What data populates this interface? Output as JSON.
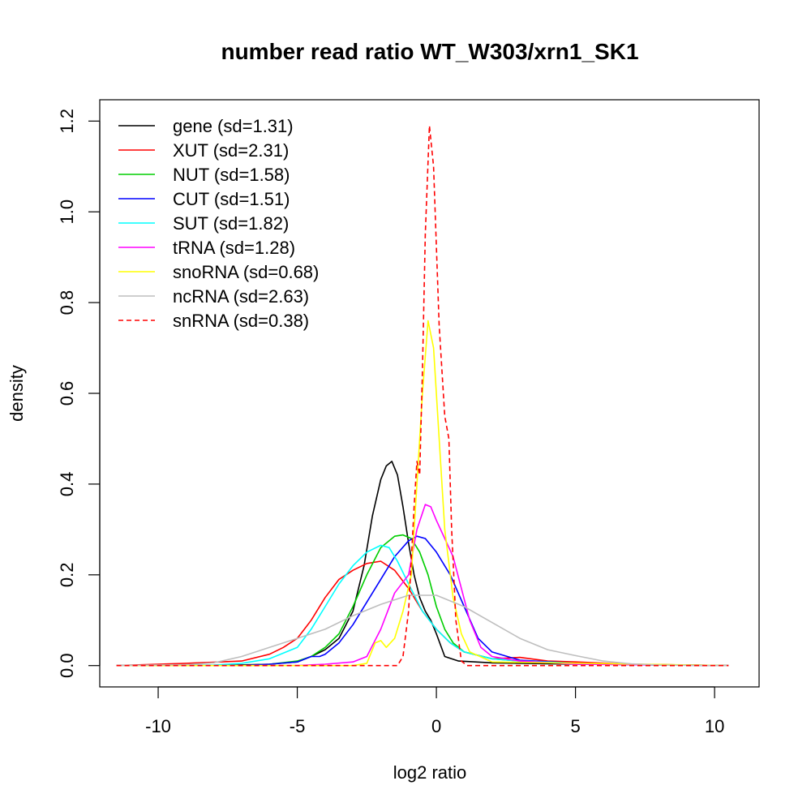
{
  "chart_data": {
    "type": "line",
    "title": "number read ratio WT_W303/xrn1_SK1",
    "xlabel": "log2 ratio",
    "ylabel": "density",
    "xlim": [
      -12.1,
      11.6
    ],
    "ylim": [
      -0.047,
      1.247
    ],
    "x_ticks": [
      -10,
      -5,
      0,
      5,
      10
    ],
    "x_tick_labels": [
      "-10",
      "-5",
      "0",
      "5",
      "10"
    ],
    "y_ticks": [
      0.0,
      0.2,
      0.4,
      0.6,
      0.8,
      1.0,
      1.2
    ],
    "y_tick_labels": [
      "0.0",
      "0.2",
      "0.4",
      "0.6",
      "0.8",
      "1.0",
      "1.2"
    ],
    "grid": false,
    "legend_position": "top-left",
    "series": [
      {
        "name": "gene (sd=1.31)",
        "color": "#000000",
        "dash": false,
        "points": [
          [
            -11.5,
            0
          ],
          [
            -8,
            0
          ],
          [
            -6,
            0.003
          ],
          [
            -5,
            0.008
          ],
          [
            -4.5,
            0.02
          ],
          [
            -4,
            0.035
          ],
          [
            -3.5,
            0.06
          ],
          [
            -3,
            0.12
          ],
          [
            -2.6,
            0.22
          ],
          [
            -2.3,
            0.33
          ],
          [
            -2,
            0.41
          ],
          [
            -1.8,
            0.44
          ],
          [
            -1.6,
            0.45
          ],
          [
            -1.4,
            0.42
          ],
          [
            -1.2,
            0.35
          ],
          [
            -1,
            0.27
          ],
          [
            -0.8,
            0.2
          ],
          [
            -0.6,
            0.15
          ],
          [
            -0.4,
            0.12
          ],
          [
            -0.2,
            0.1
          ],
          [
            0,
            0.07
          ],
          [
            0.3,
            0.02
          ],
          [
            0.8,
            0.01
          ],
          [
            2,
            0.006
          ],
          [
            5,
            0.003
          ],
          [
            8,
            0.002
          ],
          [
            10.5,
            0
          ]
        ]
      },
      {
        "name": "XUT (sd=2.31)",
        "color": "#ff0000",
        "dash": false,
        "points": [
          [
            -11.5,
            0
          ],
          [
            -9,
            0.005
          ],
          [
            -7,
            0.01
          ],
          [
            -6,
            0.025
          ],
          [
            -5.5,
            0.04
          ],
          [
            -5,
            0.06
          ],
          [
            -4.5,
            0.1
          ],
          [
            -4,
            0.15
          ],
          [
            -3.5,
            0.19
          ],
          [
            -3,
            0.21
          ],
          [
            -2.5,
            0.225
          ],
          [
            -2,
            0.23
          ],
          [
            -1.5,
            0.21
          ],
          [
            -1,
            0.17
          ],
          [
            -0.5,
            0.12
          ],
          [
            0,
            0.08
          ],
          [
            0.5,
            0.05
          ],
          [
            1,
            0.03
          ],
          [
            2,
            0.015
          ],
          [
            3,
            0.018
          ],
          [
            4,
            0.01
          ],
          [
            5,
            0.008
          ],
          [
            7,
            0.003
          ],
          [
            10.5,
            0
          ]
        ]
      },
      {
        "name": "NUT (sd=1.58)",
        "color": "#00cd00",
        "dash": false,
        "points": [
          [
            -11.5,
            0
          ],
          [
            -7,
            0
          ],
          [
            -6,
            0.003
          ],
          [
            -5,
            0.01
          ],
          [
            -4.5,
            0.02
          ],
          [
            -4,
            0.04
          ],
          [
            -3.5,
            0.07
          ],
          [
            -3,
            0.13
          ],
          [
            -2.5,
            0.2
          ],
          [
            -2,
            0.26
          ],
          [
            -1.5,
            0.285
          ],
          [
            -1.2,
            0.288
          ],
          [
            -0.9,
            0.28
          ],
          [
            -0.6,
            0.25
          ],
          [
            -0.3,
            0.2
          ],
          [
            0,
            0.13
          ],
          [
            0.3,
            0.08
          ],
          [
            0.6,
            0.05
          ],
          [
            1,
            0.03
          ],
          [
            2,
            0.015
          ],
          [
            3,
            0.01
          ],
          [
            5,
            0.005
          ],
          [
            7,
            0.002
          ],
          [
            10.5,
            0
          ]
        ]
      },
      {
        "name": "CUT (sd=1.51)",
        "color": "#0000ff",
        "dash": false,
        "points": [
          [
            -11.5,
            0
          ],
          [
            -7,
            0
          ],
          [
            -6,
            0.003
          ],
          [
            -5,
            0.008
          ],
          [
            -4.5,
            0.02
          ],
          [
            -4.2,
            0.02
          ],
          [
            -4,
            0.025
          ],
          [
            -3.5,
            0.05
          ],
          [
            -3,
            0.09
          ],
          [
            -2.5,
            0.14
          ],
          [
            -2,
            0.19
          ],
          [
            -1.5,
            0.24
          ],
          [
            -1,
            0.275
          ],
          [
            -0.7,
            0.285
          ],
          [
            -0.4,
            0.28
          ],
          [
            0,
            0.25
          ],
          [
            0.5,
            0.2
          ],
          [
            1,
            0.13
          ],
          [
            1.5,
            0.06
          ],
          [
            2,
            0.03
          ],
          [
            3,
            0.012
          ],
          [
            5,
            0.005
          ],
          [
            7,
            0.002
          ],
          [
            10.5,
            0
          ]
        ]
      },
      {
        "name": "SUT (sd=1.82)",
        "color": "#00ffff",
        "dash": false,
        "points": [
          [
            -11.5,
            0
          ],
          [
            -8,
            0.001
          ],
          [
            -7,
            0.005
          ],
          [
            -6,
            0.015
          ],
          [
            -5,
            0.04
          ],
          [
            -4.5,
            0.08
          ],
          [
            -4,
            0.13
          ],
          [
            -3.5,
            0.18
          ],
          [
            -3,
            0.22
          ],
          [
            -2.5,
            0.25
          ],
          [
            -2,
            0.265
          ],
          [
            -1.7,
            0.26
          ],
          [
            -1.4,
            0.23
          ],
          [
            -1,
            0.18
          ],
          [
            -0.5,
            0.12
          ],
          [
            0,
            0.08
          ],
          [
            0.5,
            0.05
          ],
          [
            1,
            0.03
          ],
          [
            2,
            0.015
          ],
          [
            3,
            0.01
          ],
          [
            5,
            0.005
          ],
          [
            7,
            0.002
          ],
          [
            10.5,
            0
          ]
        ]
      },
      {
        "name": "tRNA (sd=1.28)",
        "color": "#ff00ff",
        "dash": false,
        "points": [
          [
            -11.5,
            0
          ],
          [
            -5,
            0
          ],
          [
            -4,
            0.003
          ],
          [
            -3,
            0.008
          ],
          [
            -2.5,
            0.02
          ],
          [
            -2,
            0.08
          ],
          [
            -1.5,
            0.16
          ],
          [
            -1,
            0.2
          ],
          [
            -0.7,
            0.3
          ],
          [
            -0.4,
            0.355
          ],
          [
            -0.2,
            0.35
          ],
          [
            0,
            0.32
          ],
          [
            0.3,
            0.28
          ],
          [
            0.6,
            0.24
          ],
          [
            0.9,
            0.17
          ],
          [
            1.2,
            0.1
          ],
          [
            1.6,
            0.04
          ],
          [
            2,
            0.02
          ],
          [
            3,
            0.01
          ],
          [
            5,
            0.003
          ],
          [
            10.5,
            0
          ]
        ]
      },
      {
        "name": "snoRNA (sd=0.68)",
        "color": "#ffff00",
        "dash": false,
        "points": [
          [
            -11.5,
            0
          ],
          [
            -3,
            0
          ],
          [
            -2.5,
            0.005
          ],
          [
            -2.2,
            0.05
          ],
          [
            -2,
            0.055
          ],
          [
            -1.8,
            0.04
          ],
          [
            -1.5,
            0.06
          ],
          [
            -1.2,
            0.12
          ],
          [
            -0.9,
            0.2
          ],
          [
            -0.7,
            0.4
          ],
          [
            -0.5,
            0.6
          ],
          [
            -0.3,
            0.76
          ],
          [
            -0.1,
            0.7
          ],
          [
            0.1,
            0.5
          ],
          [
            0.3,
            0.3
          ],
          [
            0.6,
            0.15
          ],
          [
            0.9,
            0.07
          ],
          [
            1.2,
            0.03
          ],
          [
            2,
            0.008
          ],
          [
            10.5,
            0
          ]
        ]
      },
      {
        "name": "ncRNA (sd=2.63)",
        "color": "#bebebe",
        "dash": false,
        "points": [
          [
            -11.5,
            0
          ],
          [
            -9,
            0.002
          ],
          [
            -8,
            0.006
          ],
          [
            -7,
            0.02
          ],
          [
            -6,
            0.04
          ],
          [
            -5,
            0.06
          ],
          [
            -4,
            0.08
          ],
          [
            -3,
            0.11
          ],
          [
            -2,
            0.135
          ],
          [
            -1,
            0.155
          ],
          [
            0,
            0.155
          ],
          [
            1,
            0.13
          ],
          [
            2,
            0.095
          ],
          [
            3,
            0.06
          ],
          [
            4,
            0.035
          ],
          [
            5,
            0.022
          ],
          [
            6,
            0.01
          ],
          [
            7,
            0.004
          ],
          [
            8,
            0.001
          ],
          [
            10.5,
            0
          ]
        ]
      },
      {
        "name": "snRNA (sd=0.38)",
        "color": "#ff0000",
        "dash": true,
        "points": [
          [
            -11.5,
            0
          ],
          [
            -1.4,
            0
          ],
          [
            -1.2,
            0.02
          ],
          [
            -1,
            0.12
          ],
          [
            -0.8,
            0.35
          ],
          [
            -0.7,
            0.45
          ],
          [
            -0.6,
            0.42
          ],
          [
            -0.5,
            0.65
          ],
          [
            -0.4,
            0.95
          ],
          [
            -0.25,
            1.19
          ],
          [
            -0.1,
            1.1
          ],
          [
            0.1,
            0.75
          ],
          [
            0.3,
            0.55
          ],
          [
            0.45,
            0.5
          ],
          [
            0.55,
            0.3
          ],
          [
            0.7,
            0.1
          ],
          [
            0.9,
            0.01
          ],
          [
            1.1,
            0
          ],
          [
            10.5,
            0
          ]
        ]
      }
    ]
  }
}
